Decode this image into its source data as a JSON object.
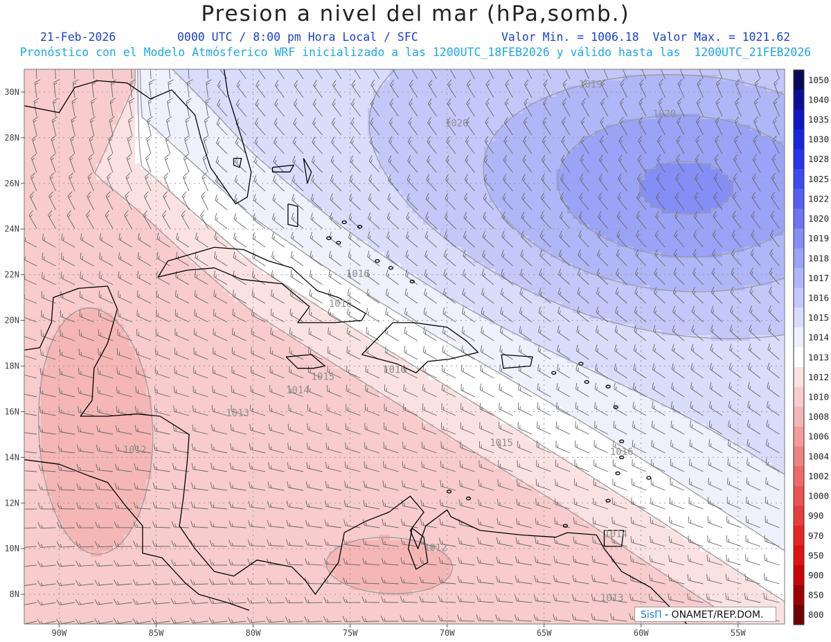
{
  "header": {
    "title": "Presion a nivel del mar (hPa,somb.)",
    "date": "21-Feb-2026",
    "time": "0000 UTC / 8:00 pm Hora Local / SFC",
    "stats": "Valor Min. = 1006.18  Valor Max. = 1021.62",
    "forecast_line": "Pronóstico con el Modelo Atmósferico WRF inicializado a las 1200UTC_18FEB2026 y válido hasta las  1200UTC_21FEB2026"
  },
  "colors": {
    "title": "#222222",
    "sub1": "#1a3fd8",
    "sub2": "#1aa7ee",
    "land": "#000000",
    "contour": "#9a9a9a",
    "barb": "#666666"
  },
  "map": {
    "lon_ticks": [
      "90W",
      "85W",
      "80W",
      "75W",
      "70W",
      "65W",
      "60W",
      "55W"
    ],
    "lat_ticks": [
      "30N",
      "28N",
      "26N",
      "24N",
      "22N",
      "20N",
      "18N",
      "16N",
      "14N",
      "12N",
      "10N",
      "8N"
    ],
    "isobar_labels": [
      {
        "text": "1019",
        "lon": -62.6,
        "lat": 30.2
      },
      {
        "text": "1020",
        "lon": -58.8,
        "lat": 28.9
      },
      {
        "text": "1020",
        "lon": -69.5,
        "lat": 28.5
      },
      {
        "text": "1016",
        "lon": -74.6,
        "lat": 21.9
      },
      {
        "text": "1016",
        "lon": -75.5,
        "lat": 20.6
      },
      {
        "text": "1016",
        "lon": -72.7,
        "lat": 17.7
      },
      {
        "text": "1015",
        "lon": -76.4,
        "lat": 17.4
      },
      {
        "text": "1014",
        "lon": -77.7,
        "lat": 16.8
      },
      {
        "text": "1013",
        "lon": -80.8,
        "lat": 15.8
      },
      {
        "text": "1012",
        "lon": -86.1,
        "lat": 14.2
      },
      {
        "text": "1015",
        "lon": -67.2,
        "lat": 14.5
      },
      {
        "text": "1016",
        "lon": -61.0,
        "lat": 14.1
      },
      {
        "text": "1014",
        "lon": -61.3,
        "lat": 10.5
      },
      {
        "text": "1012",
        "lon": -70.6,
        "lat": 9.9
      },
      {
        "text": "1013",
        "lon": -61.5,
        "lat": 7.7
      }
    ]
  },
  "colorbar": {
    "labels": [
      "1050",
      "1040",
      "1035",
      "1030",
      "1028",
      "1025",
      "1022",
      "1020",
      "1019",
      "1018",
      "1017",
      "1016",
      "1015",
      "1014",
      "1013",
      "1012",
      "1010",
      "1008",
      "1006",
      "1004",
      "1002",
      "1000",
      "990",
      "970",
      "950",
      "900",
      "850",
      "800"
    ],
    "colors": [
      "#0a0a5a",
      "#0c0e96",
      "#0f17c2",
      "#1a24dc",
      "#2a34ea",
      "#3f4af0",
      "#5561f3",
      "#6b76f4",
      "#848ef5",
      "#9ba3f6",
      "#b0b7f7",
      "#c3c8f9",
      "#d9dcfb",
      "#eef0fc",
      "#ffffff",
      "#fbe2e2",
      "#f8cccc",
      "#f5b6b6",
      "#f39c9c",
      "#f08282",
      "#ee6a6a",
      "#ec5252",
      "#e93c3c",
      "#e82525",
      "#e31010",
      "#c80505",
      "#a00000",
      "#700000"
    ]
  },
  "credit": {
    "brand": "SisΠ",
    "text": " - ONAMET/REP.DOM."
  }
}
